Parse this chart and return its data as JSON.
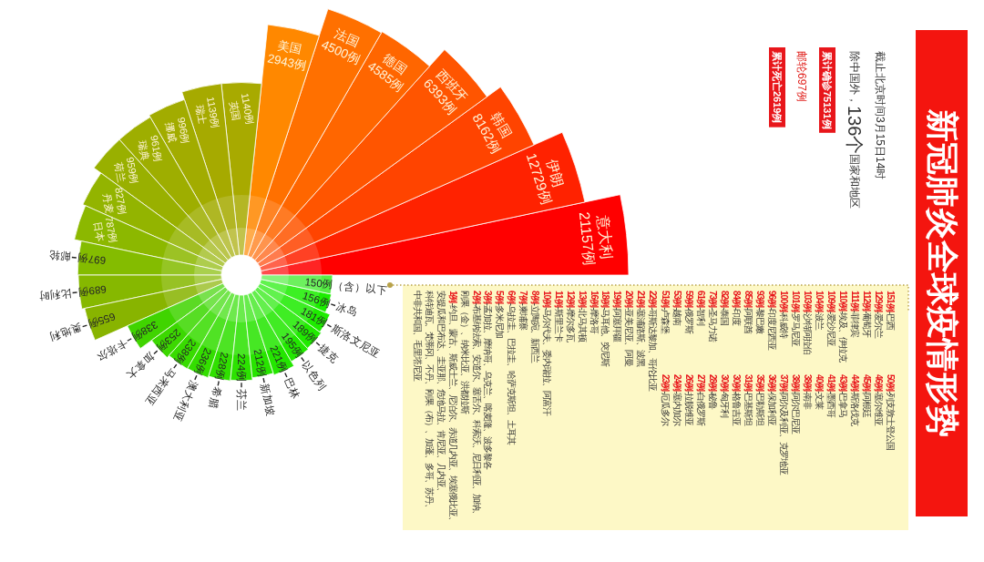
{
  "chart_data": {
    "type": "other",
    "title": "新冠肺炎全球疫情形势",
    "categories": [
      "意大利",
      "伊朗",
      "韩国",
      "西班牙",
      "德国",
      "法国",
      "美国",
      "英国",
      "瑞士",
      "挪威",
      "瑞典",
      "荷兰",
      "丹麦",
      "日本",
      "邮轮",
      "比利时",
      "奥地利",
      "卡塔尔",
      "加拿大",
      "马来西亚",
      "澳大利亚",
      "希腊",
      "芬兰",
      "新加坡",
      "巴林",
      "以色列",
      "捷克",
      "斯洛文尼亚",
      "冰岛",
      "（含）以下"
    ],
    "values": [
      21157,
      12729,
      8162,
      6393,
      4585,
      4500,
      2943,
      1140,
      1139,
      996,
      961,
      959,
      827,
      787,
      697,
      689,
      655,
      338,
      253,
      238,
      236,
      228,
      224,
      212,
      221,
      195,
      189,
      181,
      156,
      150
    ],
    "value_labels": [
      "21157例",
      "12729例",
      "8162例",
      "6393例",
      "4585例",
      "4500例",
      "2943例",
      "1140例",
      "1139例",
      "996例",
      "961例",
      "959例",
      "827例",
      "787例",
      "697例",
      "689例",
      "655例",
      "338例",
      "253例",
      "238例",
      "236例",
      "228例",
      "224例",
      "212例",
      "221例",
      "195例",
      "189例",
      "181例",
      "156例",
      "150例"
    ],
    "colors": [
      "#ff0000",
      "#ff2200",
      "#ff4400",
      "#ff5500",
      "#ff6600",
      "#ff7000",
      "#ff8800",
      "#a8aa00",
      "#a6aa00",
      "#a2ac00",
      "#9eae00",
      "#99b000",
      "#93b400",
      "#8cb800",
      "#84bc00",
      "#86b800",
      "#88b400",
      "#40d400",
      "#3cd800",
      "#38dc00",
      "#34de00",
      "#30e000",
      "#2ce200",
      "#28e400",
      "#24e600",
      "#22e800",
      "#20ea00",
      "#1eec00",
      "#1cee00",
      "#55ee44"
    ],
    "annotations": [
      "截止北京时间3月15日14时",
      "除中国外，",
      "136个",
      "国家和地区",
      "累计确诊75131例",
      "邮轮697例",
      "累计死亡2619例",
      "151例-巴西",
      "129例-爱尔兰",
      "112例-葡萄牙",
      "111例-菲律宾",
      "110例-埃及、伊拉克",
      "109例-爱沙尼亚",
      "104例-波兰",
      "103例-沙特阿拉伯",
      "101例-罗马尼亚",
      "100例-科威特",
      "96例-印度尼西亚",
      "93例-黎巴嫩",
      "85例-阿联酋",
      "84例-印度",
      "82例-泰国",
      "73例-圣马力诺",
      "61例-智利",
      "59例-俄罗斯",
      "53例-越南",
      "51例-卢森堡",
      "50例-列支敦士登公国",
      "46例-塞尔维亚",
      "45例-阿根廷",
      "44例-斯洛伐克",
      "43例-巴拿马",
      "41例-墨西哥",
      "40例-文莱",
      "38例-南非",
      "38例-阿尔巴尼亚",
      "37例-阿尔及利亚、克罗地亚",
      "36例-保加利亚",
      "35例-巴勒斯坦",
      "31例-巴基斯坦",
      "30例-格鲁吉亚",
      "30例-匈牙利",
      "28例-秘鲁",
      "27例-白俄罗斯",
      "26例-拉脱维亚",
      "24例-塞内加尔",
      "23例-厄瓜多尔",
      "22例-哥斯达黎加、哥伦比亚",
      "21例-塞浦路斯、波黑",
      "20例-亚美尼亚、阿曼",
      "19例-阿塞拜疆",
      "18例-马耳他、突尼斯",
      "16例-摩洛哥",
      "13例-北马其顿",
      "12例-摩尔多瓦",
      "11例-斯里兰卡",
      "10例-马尔代夫、委内瑞拉、阿富汗",
      "8例-立陶宛、新西兰",
      "7例-柬埔寨",
      "6例-乌拉圭、巴拉圭、哈萨克斯坦、土耳其",
      "5例-多米尼加",
      "3例-孟加拉、摩纳哥、乌克兰、喀麦隆、波多黎各",
      "2例-布基纳法索、安道尔、塞舌尔、科索沃、尼日利亚、加纳、",
      "刚果（金）、纳米比亚、洪都拉斯",
      "1例-约旦、蒙古、斯威士兰、尼泊尔、赤道几内亚、埃塞俄比亚、",
      "安提瓜和巴布达、圭亚那、危地马拉、肯尼亚、几内亚、",
      "科特迪瓦、梵蒂冈、不丹、刚果（布）、加蓬、多哥、苏丹、",
      "中非共和国、毛里塔尼亚"
    ]
  }
}
